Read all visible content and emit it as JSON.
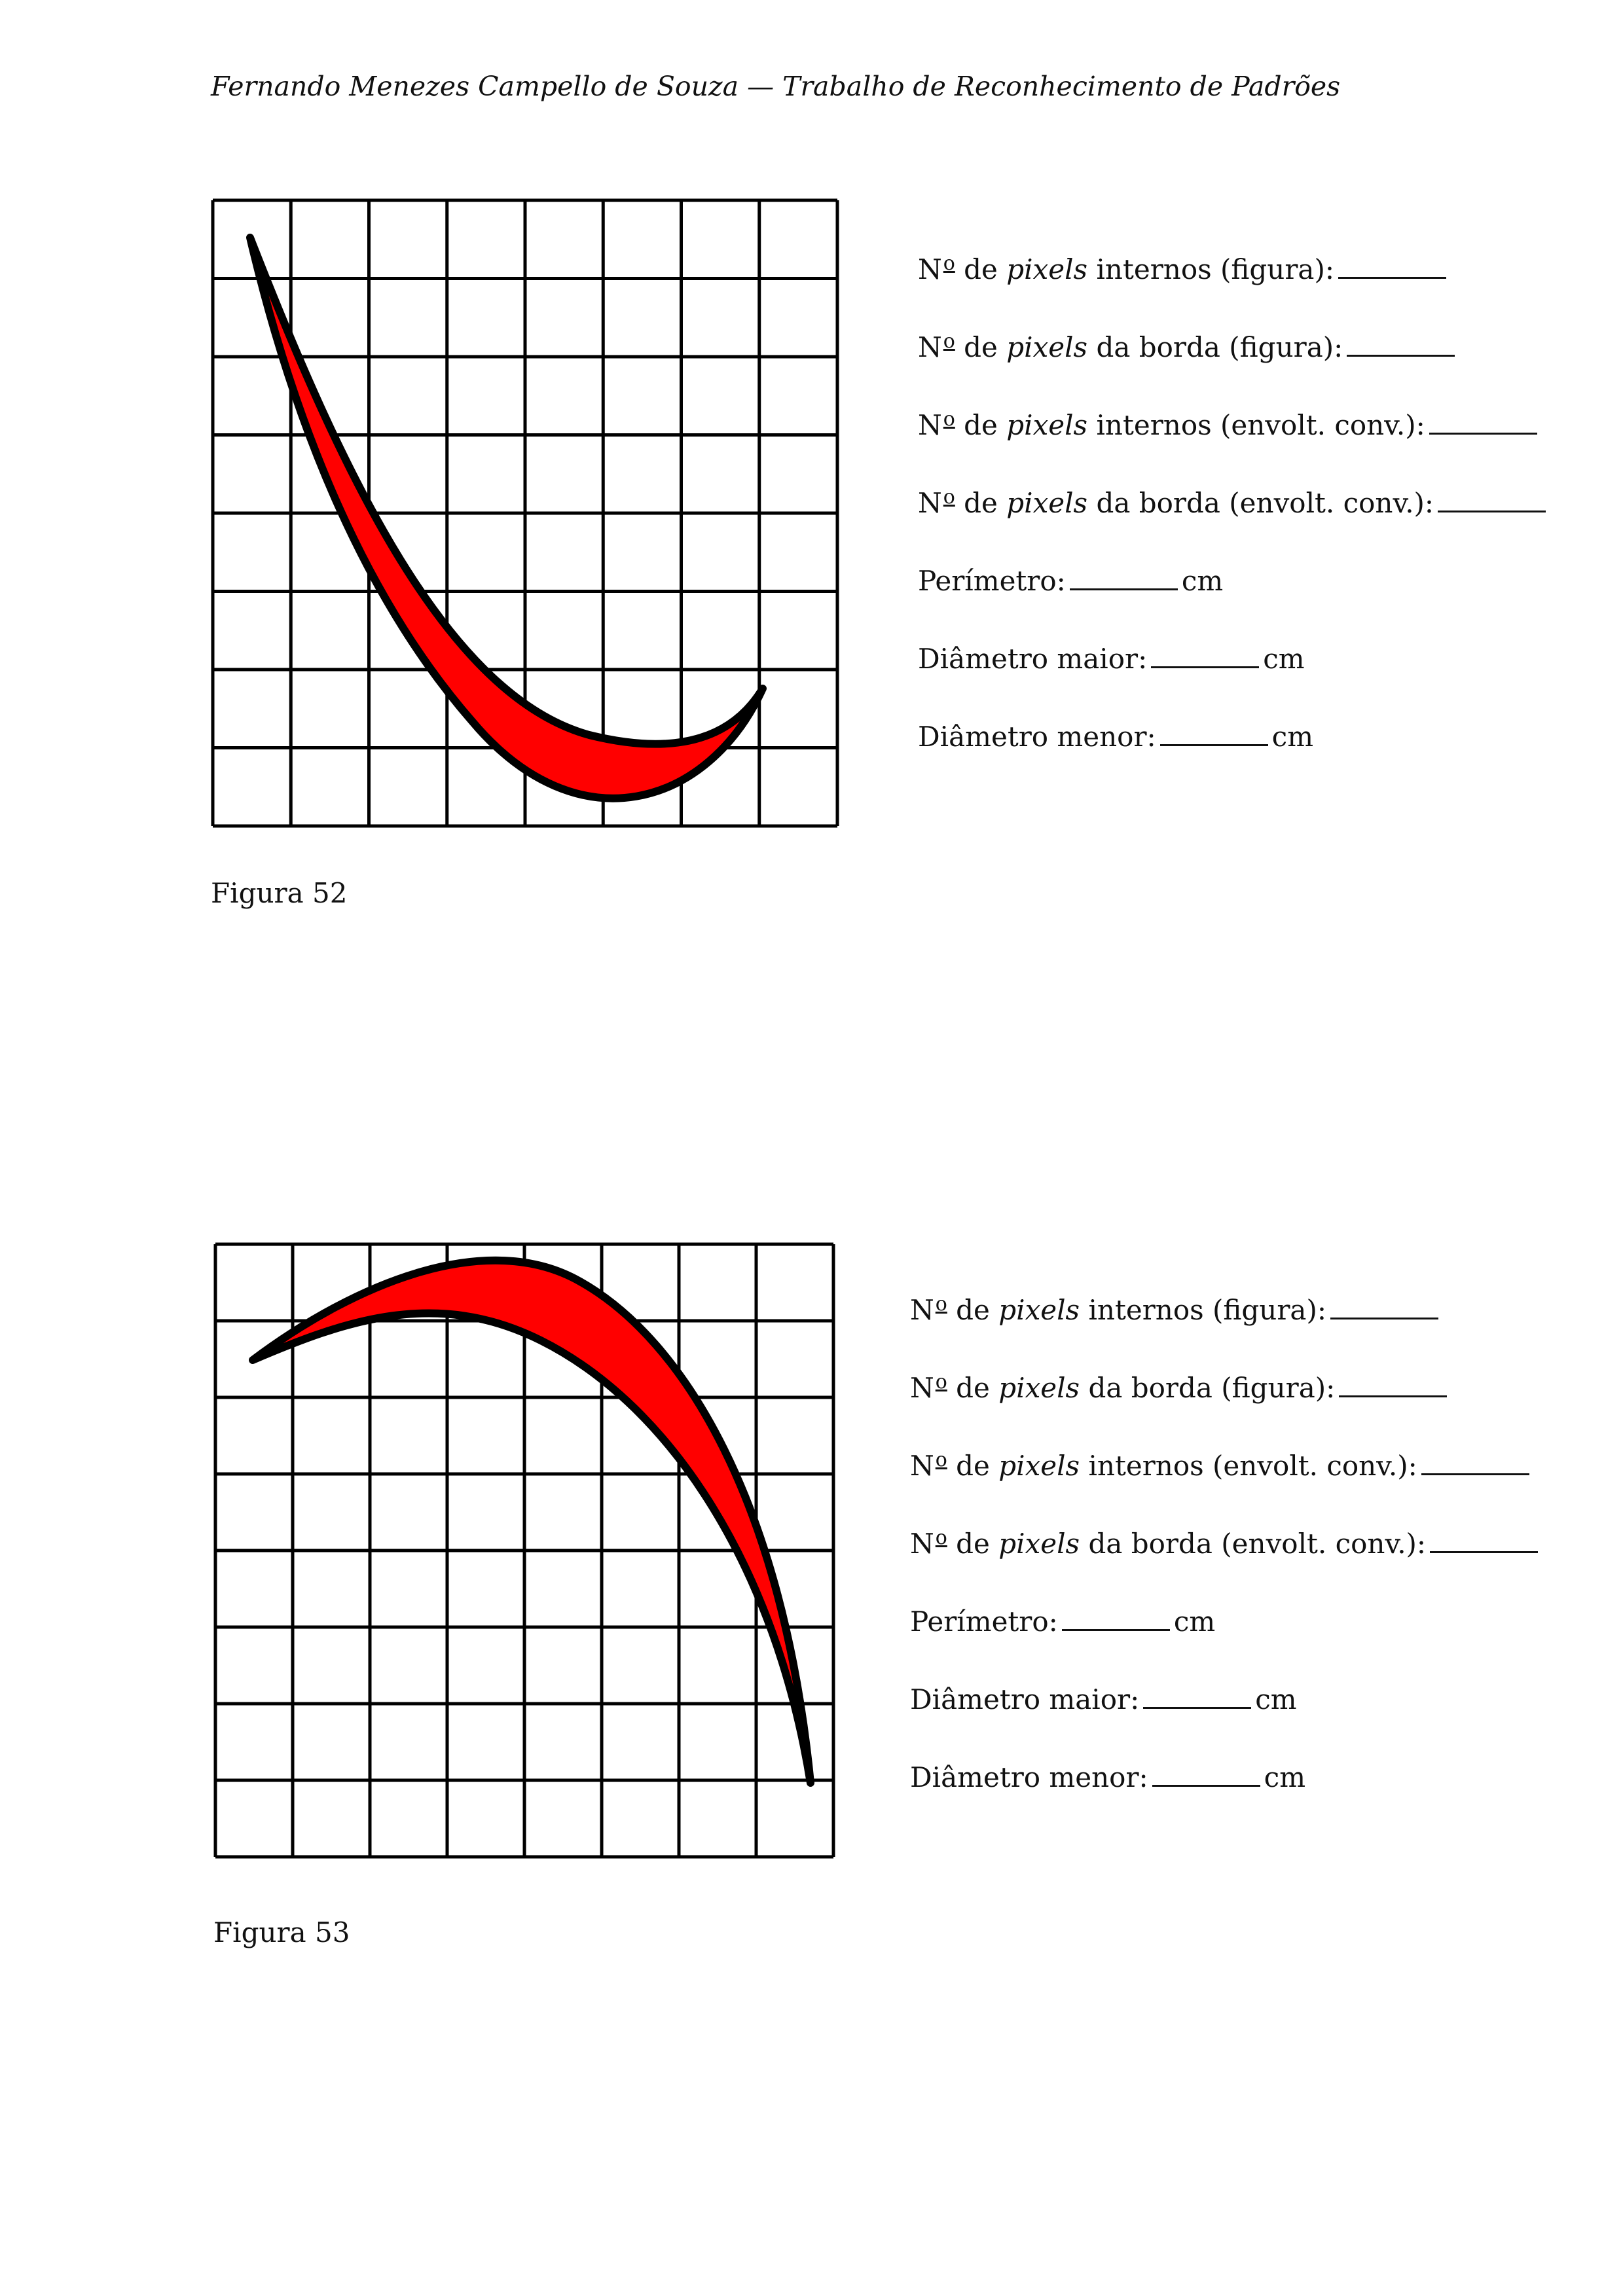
{
  "header": {
    "text": "Fernando Menezes Campello de Souza — Trabalho de Reconhecimento de Padrões"
  },
  "figures": [
    {
      "caption": "Figura 52",
      "grid": {
        "rows": 8,
        "cols": 8
      },
      "shape_color": "#ff0000",
      "fields": [
        {
          "n": "N",
          "sup": "o",
          "pre": " de ",
          "em": "pixels",
          "post": " internos (figura):",
          "unit": ""
        },
        {
          "n": "N",
          "sup": "o",
          "pre": " de ",
          "em": "pixels",
          "post": " da borda (figura):",
          "unit": ""
        },
        {
          "n": "N",
          "sup": "o",
          "pre": " de ",
          "em": "pixels",
          "post": " internos (envolt. conv.):",
          "unit": ""
        },
        {
          "n": "N",
          "sup": "o",
          "pre": " de ",
          "em": "pixels",
          "post": " da borda (envolt. conv.):",
          "unit": ""
        },
        {
          "n": "",
          "sup": "",
          "pre": "Perímetro:",
          "em": "",
          "post": "",
          "unit": "cm"
        },
        {
          "n": "",
          "sup": "",
          "pre": "Diâmetro maior:",
          "em": "",
          "post": "",
          "unit": "cm"
        },
        {
          "n": "",
          "sup": "",
          "pre": "Diâmetro menor:",
          "em": "",
          "post": "",
          "unit": "cm"
        }
      ]
    },
    {
      "caption": "Figura 53",
      "grid": {
        "rows": 8,
        "cols": 8
      },
      "shape_color": "#ff0000",
      "fields": [
        {
          "n": "N",
          "sup": "o",
          "pre": " de ",
          "em": "pixels",
          "post": " internos (figura):",
          "unit": ""
        },
        {
          "n": "N",
          "sup": "o",
          "pre": " de ",
          "em": "pixels",
          "post": " da borda (figura):",
          "unit": ""
        },
        {
          "n": "N",
          "sup": "o",
          "pre": " de ",
          "em": "pixels",
          "post": " internos (envolt. conv.):",
          "unit": ""
        },
        {
          "n": "N",
          "sup": "o",
          "pre": " de ",
          "em": "pixels",
          "post": " da borda (envolt. conv.):",
          "unit": ""
        },
        {
          "n": "",
          "sup": "",
          "pre": "Perímetro:",
          "em": "",
          "post": "",
          "unit": "cm"
        },
        {
          "n": "",
          "sup": "",
          "pre": "Diâmetro maior:",
          "em": "",
          "post": "",
          "unit": "cm"
        },
        {
          "n": "",
          "sup": "",
          "pre": "Diâmetro menor:",
          "em": "",
          "post": "",
          "unit": "cm"
        }
      ]
    }
  ]
}
